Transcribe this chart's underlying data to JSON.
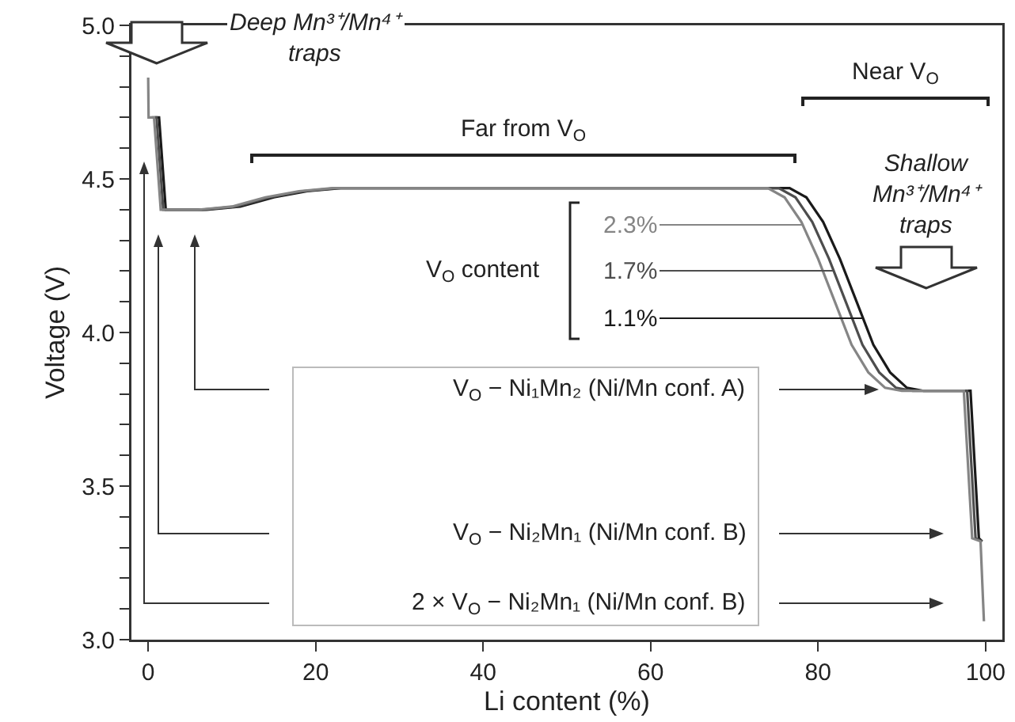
{
  "chart_data": {
    "type": "line",
    "xlabel": "Li content (%)",
    "ylabel": "Voltage (V)",
    "legend_title": "V$_{O}$ content",
    "xlim": [
      -2,
      102
    ],
    "ylim": [
      3,
      5
    ],
    "xticks": [
      0,
      20,
      40,
      60,
      80,
      100
    ],
    "yticks": [
      {
        "value": 3,
        "label": "3.0"
      },
      {
        "value": 3.1,
        "label": null
      },
      {
        "value": 3.2,
        "label": null
      },
      {
        "value": 3.3,
        "label": null
      },
      {
        "value": 3.4,
        "label": null
      },
      {
        "value": 3.5,
        "label": "3.5"
      },
      {
        "value": 3.6,
        "label": null
      },
      {
        "value": 3.7,
        "label": null
      },
      {
        "value": 3.8,
        "label": null
      },
      {
        "value": 3.9,
        "label": null
      },
      {
        "value": 4,
        "label": "4.0"
      },
      {
        "value": 4.1,
        "label": null
      },
      {
        "value": 4.2,
        "label": null
      },
      {
        "value": 4.3,
        "label": null
      },
      {
        "value": 4.4,
        "label": null
      },
      {
        "value": 4.5,
        "label": "4.5"
      },
      {
        "value": 4.6,
        "label": null
      },
      {
        "value": 4.7,
        "label": null
      },
      {
        "value": 4.8,
        "label": null
      },
      {
        "value": 4.9,
        "label": null
      },
      {
        "value": 5,
        "label": "5.0"
      }
    ],
    "series": [
      {
        "name": "1.1%",
        "color": "#1a1a1a",
        "x": [
          0.8,
          1.3,
          2.1,
          7,
          11,
          15,
          19,
          23,
          76.6,
          78.6,
          80.6,
          82.6,
          84.6,
          86.6,
          88.6,
          90.6,
          92.6,
          98.2,
          99.2,
          99.6
        ],
        "values": [
          4.7,
          4.7,
          4.4,
          4.4,
          4.41,
          4.44,
          4.46,
          4.47,
          4.47,
          4.44,
          4.36,
          4.24,
          4.1,
          3.96,
          3.87,
          3.82,
          3.81,
          3.81,
          3.33,
          3.32
        ]
      },
      {
        "name": "1.7%",
        "color": "#4d4d4d",
        "x": [
          0.4,
          1,
          1.8,
          6.5,
          10.5,
          14.5,
          18.5,
          22.5,
          75.3,
          77.3,
          79.3,
          81.3,
          83.3,
          85.3,
          87.3,
          89.3,
          91.3,
          97.8,
          98.8,
          99.6
        ],
        "values": [
          4.7,
          4.7,
          4.4,
          4.4,
          4.41,
          4.44,
          4.46,
          4.47,
          4.47,
          4.44,
          4.36,
          4.24,
          4.1,
          3.96,
          3.87,
          3.82,
          3.81,
          3.81,
          3.33,
          3.32
        ]
      },
      {
        "name": "2.3%",
        "color": "#858585",
        "x": [
          0,
          0.05,
          0.7,
          1.5,
          6,
          10,
          14,
          18,
          22,
          74,
          76,
          78,
          80,
          82,
          84,
          86,
          88,
          90,
          97.4,
          98.4,
          99.4,
          99.8
        ],
        "values": [
          4.83,
          4.7,
          4.7,
          4.4,
          4.4,
          4.41,
          4.44,
          4.46,
          4.47,
          4.47,
          4.44,
          4.36,
          4.24,
          4.1,
          3.96,
          3.87,
          3.82,
          3.81,
          3.81,
          3.33,
          3.32,
          3.06
        ]
      }
    ],
    "annotations": [
      "Far from V$_{O}$",
      "Near V$_{O}$",
      "Deep Mn³⁺/Mn⁴⁺\ntraps",
      "Shallow\nMn³⁺/Mn⁴⁺\ntraps",
      "V$_{O}$ − Ni₁Mn₂ (Ni/Mn conf. A)",
      "V$_{O}$ − Ni₂Mn₁ (Ni/Mn conf. B)",
      "2 × V$_{O}$ − Ni₂Mn₁ (Ni/Mn conf. B)"
    ]
  }
}
